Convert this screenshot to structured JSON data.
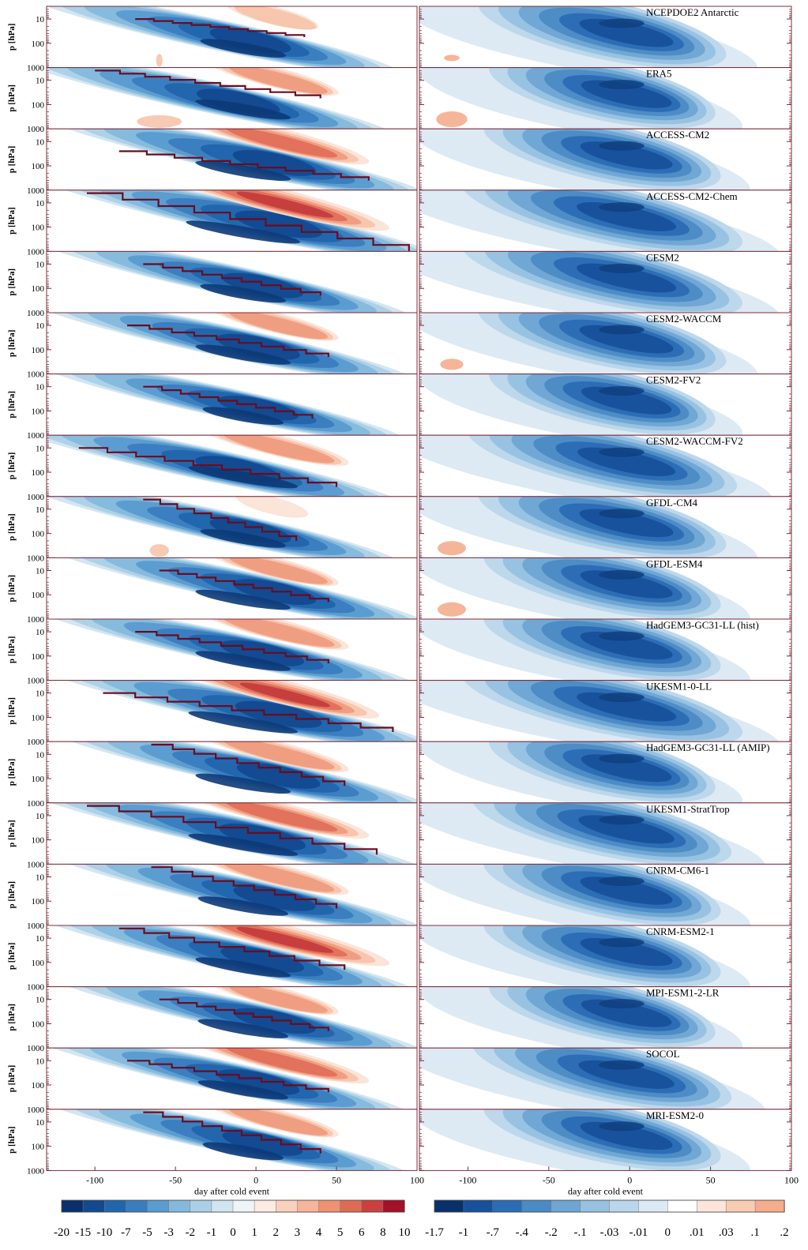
{
  "chart_data": {
    "type": "heatmap",
    "title": "",
    "xlabel": "day after cold event",
    "ylabel": "p [hPa]",
    "xlim": [
      -130,
      100
    ],
    "x_ticks": [
      -100,
      -50,
      0,
      50,
      100
    ],
    "x_tick_labels": [
      "-100",
      "-50",
      "0",
      "50",
      "100"
    ],
    "y_scale": "log",
    "y_ticks": [
      10,
      100,
      1000
    ],
    "y_tick_labels": [
      "10",
      "100",
      "1000"
    ],
    "grid": false,
    "legend": "colorbars-bottom",
    "colorbar_left": {
      "labels": [
        "-20",
        "-15",
        "-10",
        "-7",
        "-5",
        "-3",
        "-2",
        "-1",
        "0",
        "1",
        "2",
        "3",
        "4",
        "5",
        "6",
        "8",
        "10"
      ],
      "colors": [
        "#08306b",
        "#13498f",
        "#2166ac",
        "#3a7dbf",
        "#5a9bd0",
        "#84b9dc",
        "#abd0e6",
        "#d1e5f0",
        "#eef4f8",
        "#fdebe2",
        "#fbd0bc",
        "#f7b59b",
        "#ee9273",
        "#e06b55",
        "#cc3f3f",
        "#a50f28"
      ]
    },
    "colorbar_right": {
      "labels": [
        "-1.7",
        "-1",
        "-.7",
        "-.4",
        "-.2",
        "-.1",
        "-.03",
        "-.01",
        "0",
        ".01",
        ".03",
        ".1",
        ".2"
      ],
      "colors": [
        "#08306b",
        "#17519c",
        "#2b6cb5",
        "#4b8ac4",
        "#6ea5d3",
        "#96c1e1",
        "#bad6ea",
        "#dbe9f3",
        "#ffffff",
        "#fce5d9",
        "#f9cbb3",
        "#f4ad8d"
      ]
    },
    "panels": [
      {
        "name": "NCEPDOE2 Antarctic",
        "sl": 0.9,
        "sr": 0.85,
        "warm": 0.3,
        "wr": 0.1,
        "ps": 0.1,
        "line": [
          -75,
          10,
          30,
          55
        ]
      },
      {
        "name": "ERA5",
        "sl": 1.0,
        "sr": 0.75,
        "warm": 0.5,
        "wr": 0.7,
        "ps": 0.7,
        "line": [
          -100,
          4,
          40,
          55
        ]
      },
      {
        "name": "ACCESS-CM2",
        "sl": 1.0,
        "sr": 0.8,
        "warm": 0.8,
        "wr": 0.0,
        "ps": 0.0,
        "line": [
          -85,
          25,
          70,
          400
        ]
      },
      {
        "name": "ACCESS-CM2-Chem",
        "sl": 1.2,
        "sr": 1.0,
        "warm": 1.0,
        "wr": 0.0,
        "ps": 0.0,
        "line": [
          -105,
          4,
          95,
          1000
        ]
      },
      {
        "name": "CESM2",
        "sl": 0.9,
        "sr": 1.0,
        "warm": 0.0,
        "wr": 0.0,
        "ps": 0.0,
        "line": [
          -70,
          10,
          40,
          200
        ]
      },
      {
        "name": "CESM2-WACCM",
        "sl": 1.0,
        "sr": 0.85,
        "warm": 0.5,
        "wr": 0.0,
        "ps": 0.4,
        "line": [
          -80,
          10,
          45,
          200
        ]
      },
      {
        "name": "CESM2-FV2",
        "sl": 0.85,
        "sr": 0.75,
        "warm": 0.0,
        "wr": 0.0,
        "ps": 0.0,
        "line": [
          -70,
          10,
          35,
          200
        ]
      },
      {
        "name": "CESM2-WACCM-FV2",
        "sl": 1.15,
        "sr": 0.95,
        "warm": 0.6,
        "wr": 0.0,
        "ps": 0.0,
        "line": [
          -110,
          10,
          50,
          400
        ]
      },
      {
        "name": "GFDL-CM4",
        "sl": 0.9,
        "sr": 0.85,
        "warm": 0.2,
        "wr": 0.3,
        "ps": 0.6,
        "line": [
          -70,
          4,
          25,
          200
        ]
      },
      {
        "name": "GFDL-ESM4",
        "sl": 1.0,
        "sr": 0.8,
        "warm": 0.5,
        "wr": 0.0,
        "ps": 0.6,
        "line": [
          -60,
          10,
          45,
          200
        ]
      },
      {
        "name": "HadGEM3-GC31-LL (hist)",
        "sl": 1.0,
        "sr": 0.8,
        "warm": 0.6,
        "wr": 0.0,
        "ps": 0.0,
        "line": [
          -75,
          10,
          45,
          200
        ]
      },
      {
        "name": "UKESM1-0-LL",
        "sl": 1.15,
        "sr": 1.0,
        "warm": 0.9,
        "wr": 0.0,
        "ps": 0.0,
        "line": [
          -95,
          10,
          85,
          400
        ]
      },
      {
        "name": "HadGEM3-GC31-LL (AMIP)",
        "sl": 1.0,
        "sr": 0.75,
        "warm": 0.6,
        "wr": 0.0,
        "ps": 0.0,
        "line": [
          -65,
          4,
          55,
          200
        ]
      },
      {
        "name": "UKESM1-StratTrop",
        "sl": 1.15,
        "sr": 0.9,
        "warm": 0.8,
        "wr": 0.0,
        "ps": 0.0,
        "line": [
          -105,
          4,
          75,
          400
        ]
      },
      {
        "name": "CNRM-CM6-1",
        "sl": 0.95,
        "sr": 0.8,
        "warm": 0.6,
        "wr": 0.0,
        "ps": 0.0,
        "line": [
          -65,
          4,
          50,
          200
        ]
      },
      {
        "name": "CNRM-ESM2-1",
        "sl": 1.0,
        "sr": 0.8,
        "warm": 1.0,
        "wr": 0.0,
        "ps": 0.0,
        "line": [
          -85,
          4,
          55,
          200
        ]
      },
      {
        "name": "MPI-ESM1-2-LR",
        "sl": 0.95,
        "sr": 0.75,
        "warm": 0.5,
        "wr": 0.0,
        "ps": 0.0,
        "line": [
          -60,
          10,
          45,
          200
        ]
      },
      {
        "name": "SOCOL",
        "sl": 0.95,
        "sr": 0.9,
        "warm": 0.8,
        "wr": 0.0,
        "ps": 0.0,
        "line": [
          -80,
          10,
          45,
          200
        ]
      },
      {
        "name": "MRI-ESM2-0",
        "sl": 0.85,
        "sr": 0.8,
        "warm": 0.5,
        "wr": 0.0,
        "ps": 0.0,
        "line": [
          -70,
          4,
          40,
          200
        ]
      }
    ]
  }
}
